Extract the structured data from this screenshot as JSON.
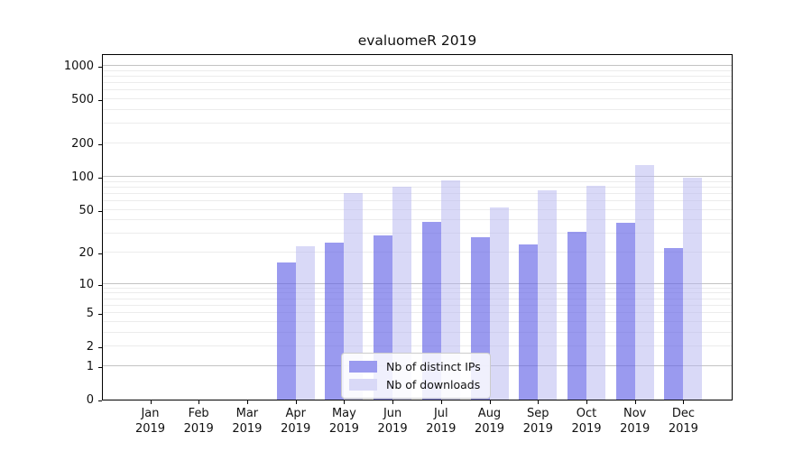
{
  "title": "evaluomeR 2019",
  "chart_data": {
    "type": "bar",
    "categories": [
      "Jan 2019",
      "Feb 2019",
      "Mar 2019",
      "Apr 2019",
      "May 2019",
      "Jun 2019",
      "Jul 2019",
      "Aug 2019",
      "Sep 2019",
      "Oct 2019",
      "Nov 2019",
      "Dec 2019"
    ],
    "x_months": [
      "Jan",
      "Feb",
      "Mar",
      "Apr",
      "May",
      "Jun",
      "Jul",
      "Aug",
      "Sep",
      "Oct",
      "Nov",
      "Dec"
    ],
    "x_year": "2019",
    "series": [
      {
        "name": "Nb of distinct IPs",
        "color": "#9a9aef",
        "fill": "rgba(100,100,230,0.65)",
        "values": [
          0,
          0,
          0,
          16,
          25,
          29,
          39,
          28,
          24,
          31,
          38,
          22
        ]
      },
      {
        "name": "Nb of downloads",
        "color": "#d9d9f7",
        "fill": "rgba(180,180,240,0.5)",
        "values": [
          0,
          0,
          0,
          23,
          71,
          81,
          93,
          52,
          75,
          83,
          127,
          98
        ]
      }
    ],
    "y_ticks": [
      0,
      1,
      2,
      5,
      10,
      20,
      50,
      100,
      200,
      500,
      1000
    ],
    "y_scale": "log10(value+1)",
    "ylim": [
      0,
      1000
    ],
    "grid": "horizontal, minor light + major darker at powers of 10",
    "legend_position": "lower center"
  },
  "colors": {
    "grid_minor": "#ececec",
    "grid_major": "#c3c3c3",
    "axis": "#000000",
    "text": "#111111",
    "legend_border": "#cccccc",
    "background": "#ffffff"
  }
}
